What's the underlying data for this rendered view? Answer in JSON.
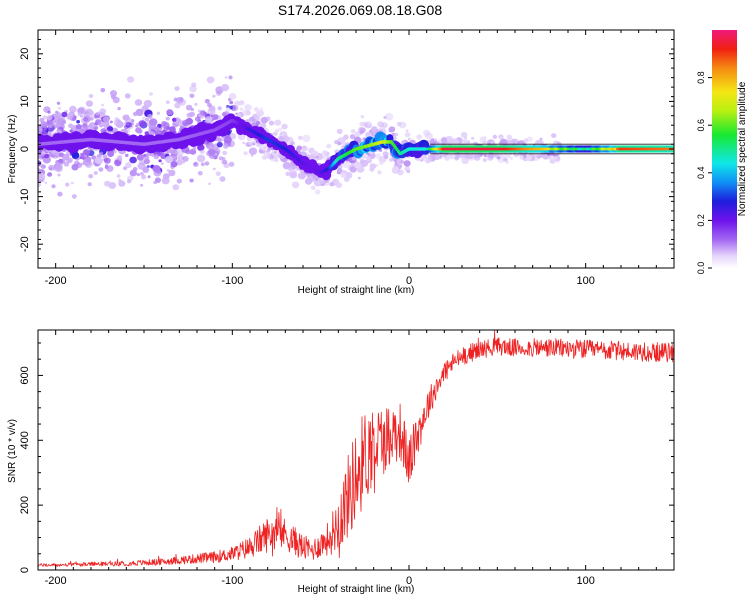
{
  "title": "S174.2026.069.08.18.G08",
  "colors": {
    "snr_line": "#ee2222",
    "track_core": "#e02020",
    "background": "#ffffff"
  },
  "chart_data": [
    {
      "type": "heatmap",
      "name": "spectrogram",
      "xlabel": "Height of straight line (km)",
      "ylabel": "Frequency (Hz)",
      "xlim": [
        -210,
        150
      ],
      "ylim": [
        -25,
        25
      ],
      "xticks": [
        -200,
        -100,
        0,
        100
      ],
      "yticks": [
        -20,
        -10,
        0,
        10,
        20
      ],
      "colorbar": {
        "label": "Normalized spectral amplitude",
        "range": [
          0.0,
          1.0
        ],
        "ticks": [
          0.0,
          0.2,
          0.4,
          0.6,
          0.8
        ],
        "tick_labels": [
          "0.0",
          "0.2",
          "0.4",
          "0.6",
          "0.8"
        ]
      },
      "ridge": {
        "x": [
          -210,
          -180,
          -150,
          -130,
          -110,
          -100,
          -90,
          -80,
          -70,
          -60,
          -55,
          -50,
          -45,
          -40,
          -35,
          -30,
          -25,
          -20,
          -15,
          -10,
          -5,
          0,
          10,
          20,
          50,
          80,
          100,
          120,
          150
        ],
        "freq": [
          1,
          2,
          1,
          2,
          4,
          6,
          4,
          2,
          0,
          -3,
          -4,
          -5,
          -4,
          -2,
          -1,
          0,
          0.5,
          1,
          1.5,
          1.5,
          -1,
          0,
          0,
          0,
          0,
          0,
          0,
          0,
          0
        ],
        "amplitude": [
          0.12,
          0.12,
          0.12,
          0.12,
          0.14,
          0.16,
          0.25,
          0.3,
          0.28,
          0.22,
          0.2,
          0.22,
          0.3,
          0.5,
          0.55,
          0.6,
          0.62,
          0.65,
          0.7,
          0.6,
          0.5,
          0.45,
          0.45,
          0.95,
          0.95,
          0.75,
          0.55,
          0.9,
          0.85
        ]
      }
    },
    {
      "type": "line",
      "name": "snr",
      "xlabel": "Height of straight line (km)",
      "ylabel": "SNR (10 * v/v)",
      "xlim": [
        -210,
        150
      ],
      "ylim": [
        0,
        740
      ],
      "xticks": [
        -200,
        -100,
        0,
        100
      ],
      "yticks": [
        0,
        200,
        400,
        600
      ],
      "series": [
        {
          "name": "SNR",
          "x": [
            -210,
            -200,
            -180,
            -160,
            -140,
            -120,
            -110,
            -100,
            -90,
            -85,
            -80,
            -75,
            -70,
            -65,
            -60,
            -55,
            -50,
            -45,
            -40,
            -35,
            -30,
            -25,
            -20,
            -15,
            -10,
            -5,
            0,
            5,
            10,
            15,
            20,
            25,
            30,
            40,
            50,
            60,
            80,
            100,
            120,
            150
          ],
          "y": [
            15,
            15,
            18,
            20,
            25,
            35,
            40,
            50,
            70,
            90,
            110,
            120,
            110,
            90,
            70,
            60,
            80,
            100,
            150,
            220,
            290,
            350,
            390,
            400,
            420,
            430,
            330,
            420,
            500,
            560,
            610,
            640,
            660,
            680,
            690,
            685,
            685,
            680,
            675,
            670
          ],
          "noise": [
            5,
            5,
            6,
            8,
            10,
            15,
            18,
            22,
            35,
            45,
            55,
            55,
            50,
            45,
            40,
            35,
            40,
            55,
            90,
            130,
            150,
            150,
            130,
            110,
            100,
            90,
            80,
            70,
            50,
            40,
            35,
            30,
            30,
            28,
            28,
            28,
            30,
            30,
            30,
            30
          ]
        }
      ]
    }
  ]
}
